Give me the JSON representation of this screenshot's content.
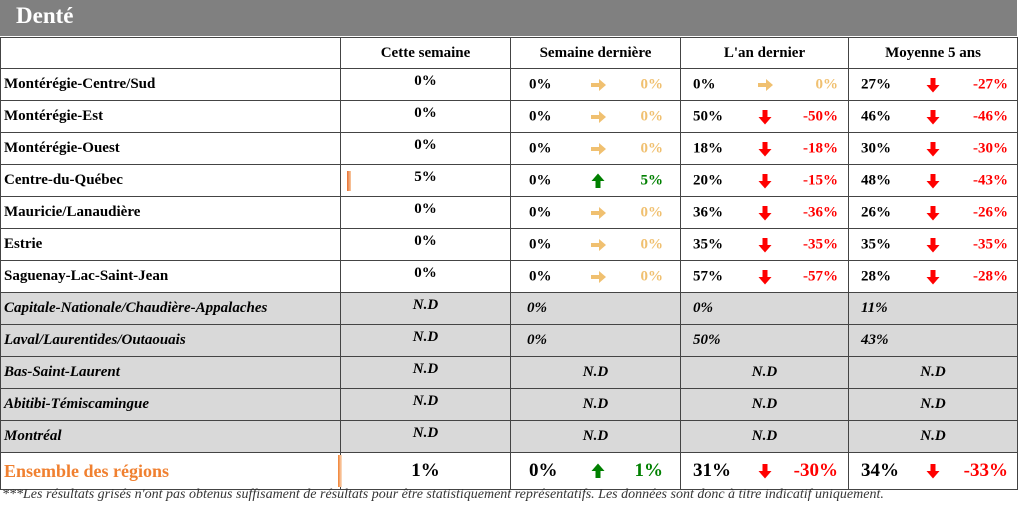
{
  "title": "Denté",
  "headers": [
    "",
    "Cette semaine",
    "Semaine dernière",
    "L'an dernier",
    "Moyenne 5 ans"
  ],
  "rows": [
    {
      "region": "Montérégie-Centre/Sud",
      "cur": "0%",
      "sd": {
        "v": "0%",
        "trend": "flat",
        "diff": "0%"
      },
      "ad": {
        "v": "0%",
        "trend": "flat",
        "diff": "0%"
      },
      "m5": {
        "v": "27%",
        "trend": "down",
        "diff": "-27%"
      }
    },
    {
      "region": "Montérégie-Est",
      "cur": "0%",
      "sd": {
        "v": "0%",
        "trend": "flat",
        "diff": "0%"
      },
      "ad": {
        "v": "50%",
        "trend": "down",
        "diff": "-50%"
      },
      "m5": {
        "v": "46%",
        "trend": "down",
        "diff": "-46%"
      }
    },
    {
      "region": "Montérégie-Ouest",
      "cur": "0%",
      "sd": {
        "v": "0%",
        "trend": "flat",
        "diff": "0%"
      },
      "ad": {
        "v": "18%",
        "trend": "down",
        "diff": "-18%"
      },
      "m5": {
        "v": "30%",
        "trend": "down",
        "diff": "-30%"
      }
    },
    {
      "region": "Centre-du-Québec",
      "cur": "5%",
      "bar": 0.05,
      "sd": {
        "v": "0%",
        "trend": "up",
        "diff": "5%"
      },
      "ad": {
        "v": "20%",
        "trend": "down",
        "diff": "-15%"
      },
      "m5": {
        "v": "48%",
        "trend": "down",
        "diff": "-43%"
      }
    },
    {
      "region": "Mauricie/Lanaudière",
      "cur": "0%",
      "sd": {
        "v": "0%",
        "trend": "flat",
        "diff": "0%"
      },
      "ad": {
        "v": "36%",
        "trend": "down",
        "diff": "-36%"
      },
      "m5": {
        "v": "26%",
        "trend": "down",
        "diff": "-26%"
      }
    },
    {
      "region": "Estrie",
      "cur": "0%",
      "sd": {
        "v": "0%",
        "trend": "flat",
        "diff": "0%"
      },
      "ad": {
        "v": "35%",
        "trend": "down",
        "diff": "-35%"
      },
      "m5": {
        "v": "35%",
        "trend": "down",
        "diff": "-35%"
      }
    },
    {
      "region": "Saguenay-Lac-Saint-Jean",
      "cur": "0%",
      "sd": {
        "v": "0%",
        "trend": "flat",
        "diff": "0%"
      },
      "ad": {
        "v": "57%",
        "trend": "down",
        "diff": "-57%"
      },
      "m5": {
        "v": "28%",
        "trend": "down",
        "diff": "-28%"
      }
    }
  ],
  "grey_rows": [
    {
      "region": "Capitale-Nationale/Chaudière-Appalaches",
      "cur": "N.D",
      "sd": "0%",
      "ad": "0%",
      "m5": "11%"
    },
    {
      "region": "Laval/Laurentides/Outaouais",
      "cur": "N.D",
      "sd": "0%",
      "ad": "50%",
      "m5": "43%"
    },
    {
      "region": "Bas-Saint-Laurent",
      "cur": "N.D",
      "sd": "N.D",
      "ad": "N.D",
      "m5": "N.D"
    },
    {
      "region": "Abitibi-Témiscamingue",
      "cur": "N.D",
      "sd": "N.D",
      "ad": "N.D",
      "m5": "N.D"
    },
    {
      "region": "Montréal",
      "cur": "N.D",
      "sd": "N.D",
      "ad": "N.D",
      "m5": "N.D"
    }
  ],
  "total": {
    "region": "Ensemble des régions",
    "cur": "1%",
    "bar": 0.01,
    "sd": {
      "v": "0%",
      "trend": "up",
      "diff": "1%"
    },
    "ad": {
      "v": "31%",
      "trend": "down",
      "diff": "-30%"
    },
    "m5": {
      "v": "34%",
      "trend": "down",
      "diff": "-33%"
    }
  },
  "footnote": "***Les résultats grisés n'ont pas obtenus suffisament de résultats pour être statistiquement représentatifs. Les données sont donc à titre indicatif uniquement.",
  "colors": {
    "header_bg": "#808080",
    "grey_row": "#d9d9d9",
    "flat_arrow": "#f0c070",
    "down_arrow": "#ff0000",
    "up_arrow": "#008000",
    "total_label": "#f08030",
    "bar": "#e87030"
  }
}
